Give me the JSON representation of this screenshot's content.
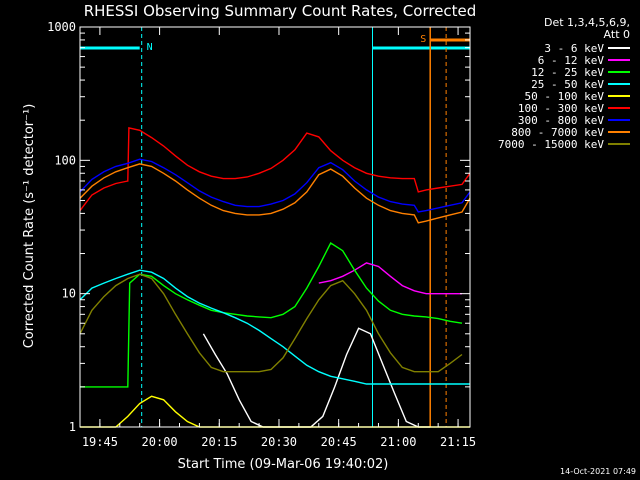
{
  "chart_data": {
    "type": "line",
    "title": "RHESSI Observing Summary Count Rates, Corrected",
    "xlabel": "Start Time (09-Mar-06 19:40:02)",
    "ylabel": "Corrected Count Rate (s⁻¹ detector⁻¹)",
    "yscale": "log",
    "ylim": [
      1,
      1000
    ],
    "xlim_minutes": [
      0,
      98
    ],
    "x_ticks": [
      "19:45",
      "20:00",
      "20:15",
      "20:30",
      "20:45",
      "21:00",
      "21:15"
    ],
    "y_ticks": [
      "1",
      "10",
      "100",
      "1000"
    ],
    "legend_header": [
      "Det 1,3,4,5,6,9,",
      "Att 0"
    ],
    "legend_position": "right",
    "timestamp": "14-Oct-2021 07:49",
    "markers": {
      "night_label": "N",
      "saa_label": "S"
    },
    "series": [
      {
        "name": "3 - 6 keV",
        "color": "#ffffff",
        "x": [
          31,
          34,
          37,
          40,
          43,
          46,
          49,
          52,
          55,
          58,
          61,
          64,
          67,
          70,
          73,
          76,
          79,
          82,
          85,
          88
        ],
        "y": [
          5,
          3.5,
          2.5,
          1.6,
          1.1,
          1,
          1,
          1,
          1,
          1,
          1.2,
          2,
          3.5,
          5.5,
          5,
          3,
          1.8,
          1.1,
          1,
          1
        ]
      },
      {
        "name": "6 - 12 keV",
        "color": "#ff00ff",
        "x": [
          60,
          63,
          66,
          69,
          72,
          75,
          78,
          81,
          84,
          87,
          90,
          93,
          96
        ],
        "y": [
          12,
          12.5,
          13.5,
          15,
          17,
          16,
          13.5,
          11.5,
          10.5,
          10,
          10,
          10,
          10
        ]
      },
      {
        "name": "12 - 25 keV",
        "color": "#00ff00",
        "x": [
          0,
          12,
          12.5,
          15,
          18,
          21,
          24,
          27,
          30,
          33,
          36,
          39,
          42,
          45,
          48,
          51,
          54,
          57,
          60,
          63,
          66,
          69,
          72,
          75,
          78,
          81,
          84,
          87,
          90,
          93,
          96
        ],
        "y": [
          2,
          2,
          12,
          14,
          13.5,
          11.5,
          10,
          9,
          8.2,
          7.5,
          7.2,
          7,
          6.8,
          6.7,
          6.6,
          7,
          8,
          11,
          16,
          24,
          21,
          15,
          11,
          8.8,
          7.5,
          7,
          6.8,
          6.7,
          6.5,
          6.2,
          6
        ]
      },
      {
        "name": "25 - 50 keV",
        "color": "#00ffff",
        "x": [
          0,
          3,
          6,
          9,
          12,
          15,
          18,
          21,
          24,
          27,
          30,
          33,
          36,
          39,
          42,
          45,
          48,
          51,
          54,
          57,
          60,
          63,
          66,
          69,
          72,
          75,
          78,
          81,
          84,
          87,
          90,
          93,
          96,
          98
        ],
        "y": [
          9,
          11,
          12,
          13,
          14,
          15,
          14.5,
          13,
          11,
          9.5,
          8.5,
          7.8,
          7.2,
          6.6,
          6,
          5.3,
          4.6,
          4,
          3.4,
          2.9,
          2.6,
          2.4,
          2.3,
          2.2,
          2.1,
          2.1,
          2.1,
          2.1,
          2.1,
          2.1,
          2.1,
          2.1,
          2.1,
          2.1
        ]
      },
      {
        "name": "50 - 100 keV",
        "color": "#ffff00",
        "x": [
          0,
          3,
          6,
          9,
          12,
          15,
          18,
          21,
          24,
          27,
          30,
          33,
          36,
          39,
          42,
          45,
          48,
          51,
          54,
          57,
          60,
          63,
          66,
          69,
          72,
          75,
          78,
          81,
          84,
          87,
          90,
          93,
          96,
          98
        ],
        "y": [
          1,
          1,
          1,
          1,
          1.2,
          1.5,
          1.7,
          1.6,
          1.3,
          1.1,
          1,
          1,
          1,
          1,
          1,
          1,
          1,
          1,
          1,
          1,
          1,
          1,
          1,
          1,
          1,
          1,
          1,
          1,
          1,
          1,
          1,
          1,
          1,
          1
        ]
      },
      {
        "name": "100 - 300 keV",
        "color": "#ff0000",
        "x": [
          0,
          3,
          6,
          9,
          12,
          12.3,
          15,
          18,
          21,
          24,
          27,
          30,
          33,
          36,
          39,
          42,
          45,
          48,
          51,
          54,
          57,
          60,
          63,
          66,
          69,
          72,
          75,
          78,
          81,
          84,
          85,
          87,
          90,
          93,
          96,
          98
        ],
        "y": [
          42,
          55,
          62,
          67,
          70,
          175,
          168,
          148,
          128,
          108,
          92,
          82,
          76,
          73,
          73,
          75,
          80,
          87,
          100,
          120,
          160,
          150,
          118,
          100,
          88,
          80,
          76,
          74,
          73,
          73,
          58,
          60,
          62,
          64,
          66,
          80
        ]
      },
      {
        "name": "300 - 800 keV",
        "color": "#0000ff",
        "x": [
          0,
          3,
          6,
          9,
          12,
          15,
          18,
          21,
          24,
          27,
          30,
          33,
          36,
          39,
          42,
          45,
          48,
          51,
          54,
          57,
          60,
          63,
          66,
          69,
          72,
          75,
          78,
          81,
          84,
          85,
          87,
          90,
          93,
          96,
          98
        ],
        "y": [
          58,
          72,
          82,
          90,
          95,
          102,
          98,
          88,
          78,
          68,
          59,
          53,
          49,
          46,
          45,
          45,
          47,
          50,
          56,
          68,
          88,
          96,
          85,
          70,
          60,
          53,
          49,
          47,
          46,
          41,
          42,
          44,
          46,
          48,
          58
        ]
      },
      {
        "name": "800 - 7000 keV",
        "color": "#ff8000",
        "x": [
          0,
          3,
          6,
          9,
          12,
          15,
          18,
          21,
          24,
          27,
          30,
          33,
          36,
          39,
          42,
          45,
          48,
          51,
          54,
          57,
          60,
          63,
          66,
          69,
          72,
          75,
          78,
          81,
          84,
          85,
          87,
          90,
          93,
          96,
          98
        ],
        "y": [
          52,
          64,
          74,
          82,
          88,
          94,
          90,
          80,
          70,
          60,
          52,
          46,
          42,
          40,
          39,
          39,
          40,
          43,
          48,
          58,
          78,
          86,
          76,
          62,
          52,
          46,
          42,
          40,
          39,
          34,
          35,
          37,
          39,
          41,
          52
        ]
      },
      {
        "name": "7000 - 15000 keV",
        "color": "#808000",
        "x": [
          0,
          3,
          6,
          9,
          12,
          15,
          18,
          21,
          24,
          27,
          30,
          33,
          36,
          39,
          42,
          45,
          48,
          51,
          54,
          57,
          60,
          63,
          66,
          69,
          72,
          75,
          78,
          81,
          84,
          87,
          90,
          93,
          96
        ],
        "y": [
          5,
          7.5,
          9.5,
          11.5,
          13,
          14,
          13,
          10,
          7,
          5,
          3.6,
          2.8,
          2.6,
          2.6,
          2.6,
          2.6,
          2.7,
          3.3,
          4.6,
          6.5,
          9,
          11.5,
          12.5,
          10,
          7.5,
          5,
          3.6,
          2.8,
          2.6,
          2.6,
          2.6,
          3,
          3.5
        ]
      }
    ]
  }
}
